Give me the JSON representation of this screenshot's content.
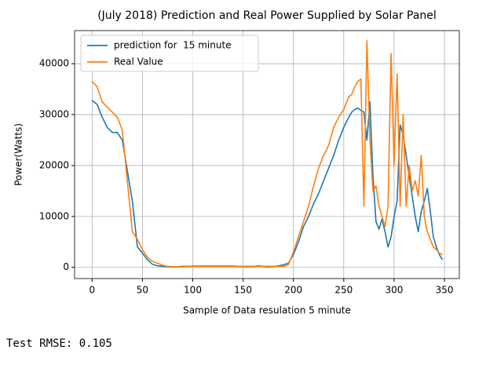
{
  "chart_data": {
    "type": "line",
    "title": "(July 2018) Prediction and Real Power Supplied by Solar Panel",
    "xlabel": "Sample of Data resulation 5 minute",
    "ylabel": "Power(Watts)",
    "x": [
      0,
      5,
      10,
      15,
      20,
      25,
      30,
      35,
      40,
      45,
      50,
      55,
      60,
      65,
      70,
      75,
      80,
      85,
      90,
      95,
      100,
      105,
      110,
      115,
      120,
      125,
      130,
      135,
      140,
      145,
      150,
      155,
      160,
      165,
      170,
      175,
      180,
      185,
      190,
      195,
      200,
      205,
      210,
      215,
      220,
      225,
      230,
      235,
      240,
      245,
      250,
      255,
      258,
      261,
      264,
      267,
      270,
      273,
      276,
      279,
      282,
      285,
      288,
      291,
      294,
      297,
      300,
      303,
      306,
      309,
      312,
      315,
      318,
      321,
      324,
      327,
      330,
      333,
      336,
      339,
      342,
      345,
      348
    ],
    "series": [
      {
        "name": "prediction for  15 minute",
        "color": "#1f77b4",
        "values": [
          32800,
          32000,
          29500,
          27500,
          26500,
          26500,
          25000,
          19000,
          13000,
          4000,
          2800,
          1500,
          600,
          300,
          200,
          150,
          100,
          100,
          200,
          200,
          250,
          250,
          250,
          250,
          250,
          250,
          250,
          250,
          250,
          200,
          150,
          150,
          150,
          300,
          200,
          100,
          150,
          300,
          500,
          800,
          2500,
          5000,
          8000,
          10000,
          12500,
          14500,
          17000,
          19500,
          22000,
          25000,
          27500,
          29500,
          30500,
          31000,
          31300,
          30800,
          30500,
          25000,
          32500,
          18000,
          9000,
          7500,
          9500,
          7000,
          4000,
          6000,
          10000,
          13000,
          28000,
          26000,
          22000,
          18000,
          14000,
          10000,
          7000,
          11000,
          13000,
          15500,
          11000,
          6000,
          4000,
          2500,
          1500
        ]
      },
      {
        "name": "Real Value",
        "color": "#ff7f0e",
        "values": [
          36500,
          35500,
          32500,
          31500,
          30500,
          29500,
          27000,
          17000,
          7000,
          5500,
          3500,
          2000,
          1200,
          800,
          400,
          200,
          150,
          100,
          100,
          200,
          200,
          200,
          200,
          200,
          200,
          200,
          200,
          200,
          200,
          200,
          200,
          200,
          200,
          200,
          200,
          200,
          200,
          200,
          200,
          500,
          3000,
          6000,
          9000,
          12000,
          16000,
          19500,
          22000,
          24000,
          27500,
          29500,
          31000,
          33500,
          34000,
          35500,
          36500,
          37000,
          12000,
          44500,
          25000,
          15000,
          16000,
          12000,
          10000,
          8000,
          12000,
          42000,
          20000,
          38000,
          12000,
          30000,
          12000,
          20000,
          15000,
          17000,
          14000,
          22000,
          10000,
          7000,
          5500,
          4000,
          3500,
          2800,
          2500
        ]
      }
    ],
    "xlim": [
      -17.4,
      364.8
    ],
    "ylim": [
      -2200,
      46500
    ],
    "xticks": [
      0,
      50,
      100,
      150,
      200,
      250,
      300,
      350
    ],
    "yticks": [
      0,
      10000,
      20000,
      30000,
      40000
    ],
    "grid": true,
    "legend": "upper left"
  },
  "output_text": "Test RMSE: 0.105"
}
